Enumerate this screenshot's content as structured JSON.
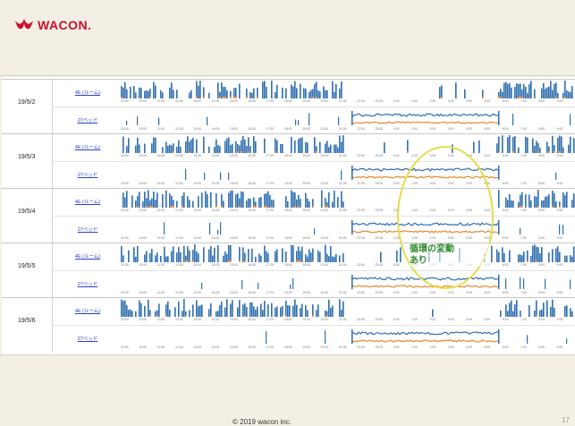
{
  "header": {
    "logo_text": "WACON."
  },
  "days": [
    {
      "date": "19/5/2",
      "row1": "4E (ルーム)",
      "row2": "27ベッド"
    },
    {
      "date": "19/5/3",
      "row1": "4E (ルーム)",
      "row2": "27ベッド"
    },
    {
      "date": "19/5/4",
      "row1": "4E (ルーム)",
      "row2": "27ベッド"
    },
    {
      "date": "19/5/5",
      "row1": "4E (ルーム)",
      "row2": "27ベッド"
    },
    {
      "date": "19/5/6",
      "row1": "4E (ルーム)",
      "row2": "27ベッド"
    }
  ],
  "time_ticks": [
    "20:00",
    "10:00",
    "11:00",
    "12:00",
    "13:00",
    "14:00",
    "15:00",
    "16:00",
    "17:00",
    "18:00",
    "19:00",
    "20:00",
    "21:00",
    "22:00",
    "23:00",
    "0:00",
    "1:00",
    "2:00",
    "3:00",
    "4:00",
    "5:00",
    "6:00",
    "7:00",
    "8:00",
    "9:00"
  ],
  "annotation": {
    "line1": "循環の変動",
    "line2": "あり"
  },
  "footer": {
    "copyright": "© 2019 wacon inc.",
    "page_number": "17"
  },
  "colors": {
    "series_blue": "#2f6fb0",
    "series_orange": "#e8892f",
    "annotation_outline": "#e6dc4a",
    "annotation_text": "#2e8b2e",
    "brand": "#c8102e"
  }
}
